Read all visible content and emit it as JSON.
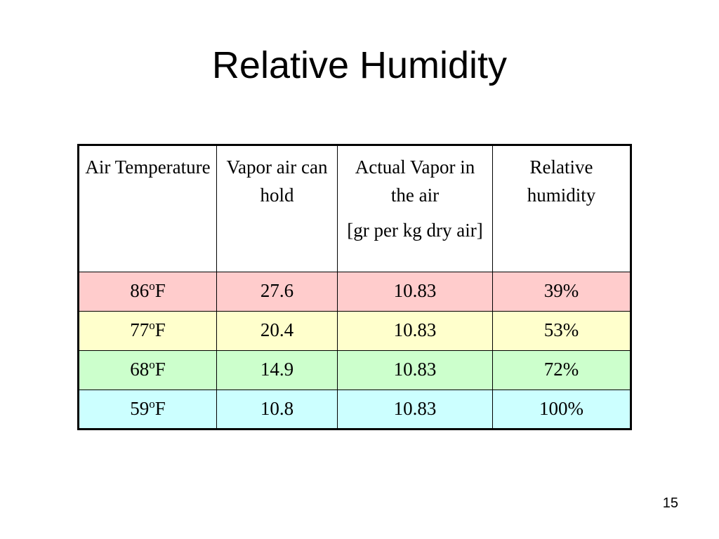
{
  "title": "Relative Humidity",
  "table": {
    "header": [
      [
        "Air Temperature"
      ],
      [
        "Vapor air can hold"
      ],
      [
        "Actual Vapor in the air",
        "[gr per kg dry air]"
      ],
      [
        "Relative humidity"
      ]
    ],
    "rows": [
      [
        {
          "number": "86",
          "sup": "o",
          "unit": "F"
        },
        "27.6",
        "10.83",
        "39%"
      ],
      [
        {
          "number": "77",
          "sup": "o",
          "unit": "F"
        },
        "20.4",
        "10.83",
        "53%"
      ],
      [
        {
          "number": "68",
          "sup": "o",
          "unit": "F"
        },
        "14.9",
        "10.83",
        "72%"
      ],
      [
        {
          "number": "59",
          "sup": "o",
          "unit": "F"
        },
        "10.8",
        "10.83",
        "100%"
      ]
    ],
    "row_colors": [
      "#ffcccc",
      "#ffffcc",
      "#ccffcc",
      "#ccffff"
    ]
  },
  "page_number": "15"
}
